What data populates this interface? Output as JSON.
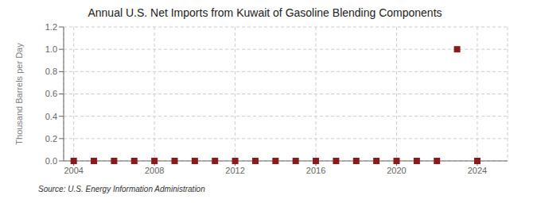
{
  "chart_data": {
    "type": "scatter",
    "title": "Annual U.S. Net Imports from Kuwait of Gasoline Blending Components",
    "ylabel": "Thousand Barrels per Day",
    "source": "Source: U.S. Energy Information Administration",
    "x": [
      2004,
      2005,
      2006,
      2007,
      2008,
      2009,
      2010,
      2011,
      2012,
      2013,
      2014,
      2015,
      2016,
      2017,
      2018,
      2019,
      2020,
      2021,
      2022,
      2023,
      2024
    ],
    "values": [
      0.0,
      0.0,
      0.0,
      0.0,
      0.0,
      0.0,
      0.0,
      0.0,
      0.0,
      0.0,
      0.0,
      0.0,
      0.0,
      0.0,
      0.0,
      0.0,
      0.0,
      0.0,
      0.0,
      1.0,
      0.0
    ],
    "color": "#8b1a1a",
    "marker": "square",
    "xlim": [
      2003.5,
      2025.5
    ],
    "ylim": [
      0.0,
      1.2
    ],
    "xticks": [
      2004,
      2008,
      2012,
      2016,
      2020,
      2024
    ],
    "yticks": [
      {
        "value": 0.0,
        "label": "0.0"
      },
      0.2,
      0.4,
      0.6,
      0.8,
      {
        "value": 1.0,
        "label": "1.0"
      },
      1.2
    ],
    "grid": true
  }
}
